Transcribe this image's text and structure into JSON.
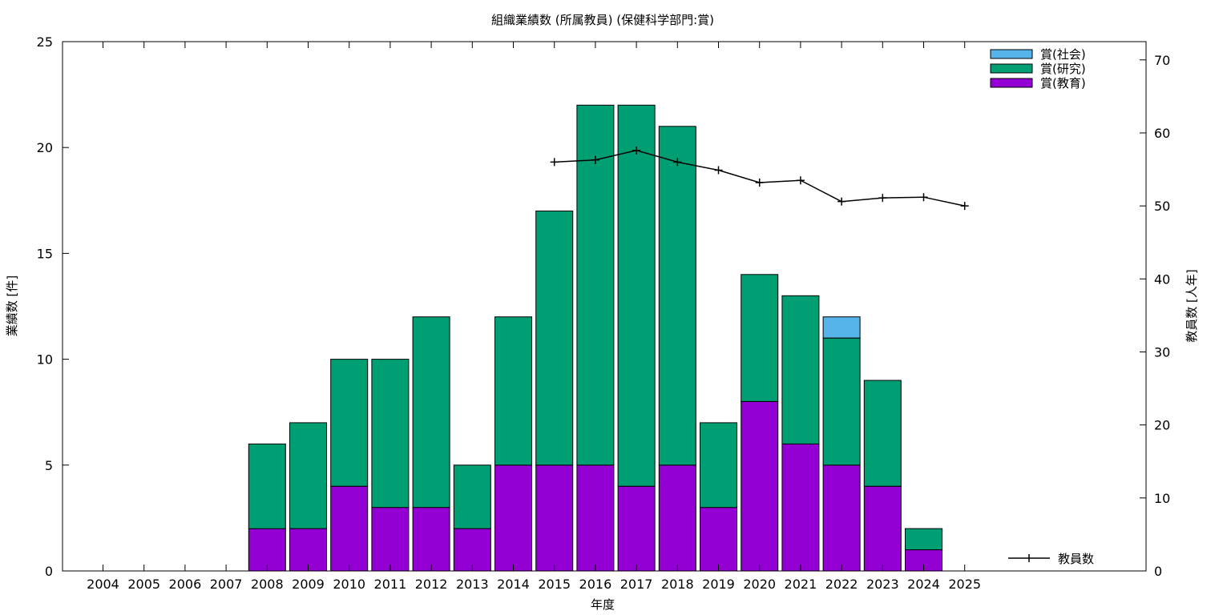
{
  "chart_data": {
    "type": "bar",
    "stacked": true,
    "title": "組織業績数 (所属教員) (保健科学部門:賞)",
    "xlabel": "年度",
    "ylabel": "業績数 [件]",
    "y2label": "教員数 [人年]",
    "ylim": [
      0,
      25
    ],
    "y2lim": [
      0,
      72.5
    ],
    "yticks": [
      0,
      5,
      10,
      15,
      20,
      25
    ],
    "y2ticks": [
      0,
      10,
      20,
      30,
      40,
      50,
      60,
      70
    ],
    "grid": false,
    "legend_position": "top-right",
    "categories": [
      "2004",
      "2005",
      "2006",
      "2007",
      "2008",
      "2009",
      "2010",
      "2011",
      "2012",
      "2013",
      "2014",
      "2015",
      "2016",
      "2017",
      "2018",
      "2019",
      "2020",
      "2021",
      "2022",
      "2023",
      "2024",
      "2025"
    ],
    "series": [
      {
        "name": "賞(教育)",
        "color": "#9400d3",
        "values": [
          0,
          0,
          0,
          0,
          2,
          2,
          4,
          3,
          3,
          2,
          5,
          5,
          5,
          4,
          5,
          3,
          8,
          6,
          5,
          4,
          1,
          0
        ]
      },
      {
        "name": "賞(研究)",
        "color": "#009e73",
        "values": [
          0,
          0,
          0,
          0,
          4,
          5,
          6,
          7,
          9,
          3,
          7,
          12,
          17,
          18,
          16,
          4,
          6,
          7,
          6,
          5,
          1,
          0
        ]
      },
      {
        "name": "賞(社会)",
        "color": "#56b4e9",
        "values": [
          0,
          0,
          0,
          0,
          0,
          0,
          0,
          0,
          0,
          0,
          0,
          0,
          0,
          0,
          0,
          0,
          0,
          0,
          1,
          0,
          0,
          0
        ]
      }
    ],
    "line_series": {
      "name": "教員数",
      "color": "#000000",
      "axis": "y2",
      "x": [
        "2015",
        "2016",
        "2017",
        "2018",
        "2019",
        "2020",
        "2021",
        "2022",
        "2023",
        "2024",
        "2025"
      ],
      "values": [
        56.0,
        56.3,
        57.6,
        56.0,
        54.9,
        53.2,
        53.5,
        50.6,
        51.1,
        51.2,
        50.0
      ]
    }
  }
}
